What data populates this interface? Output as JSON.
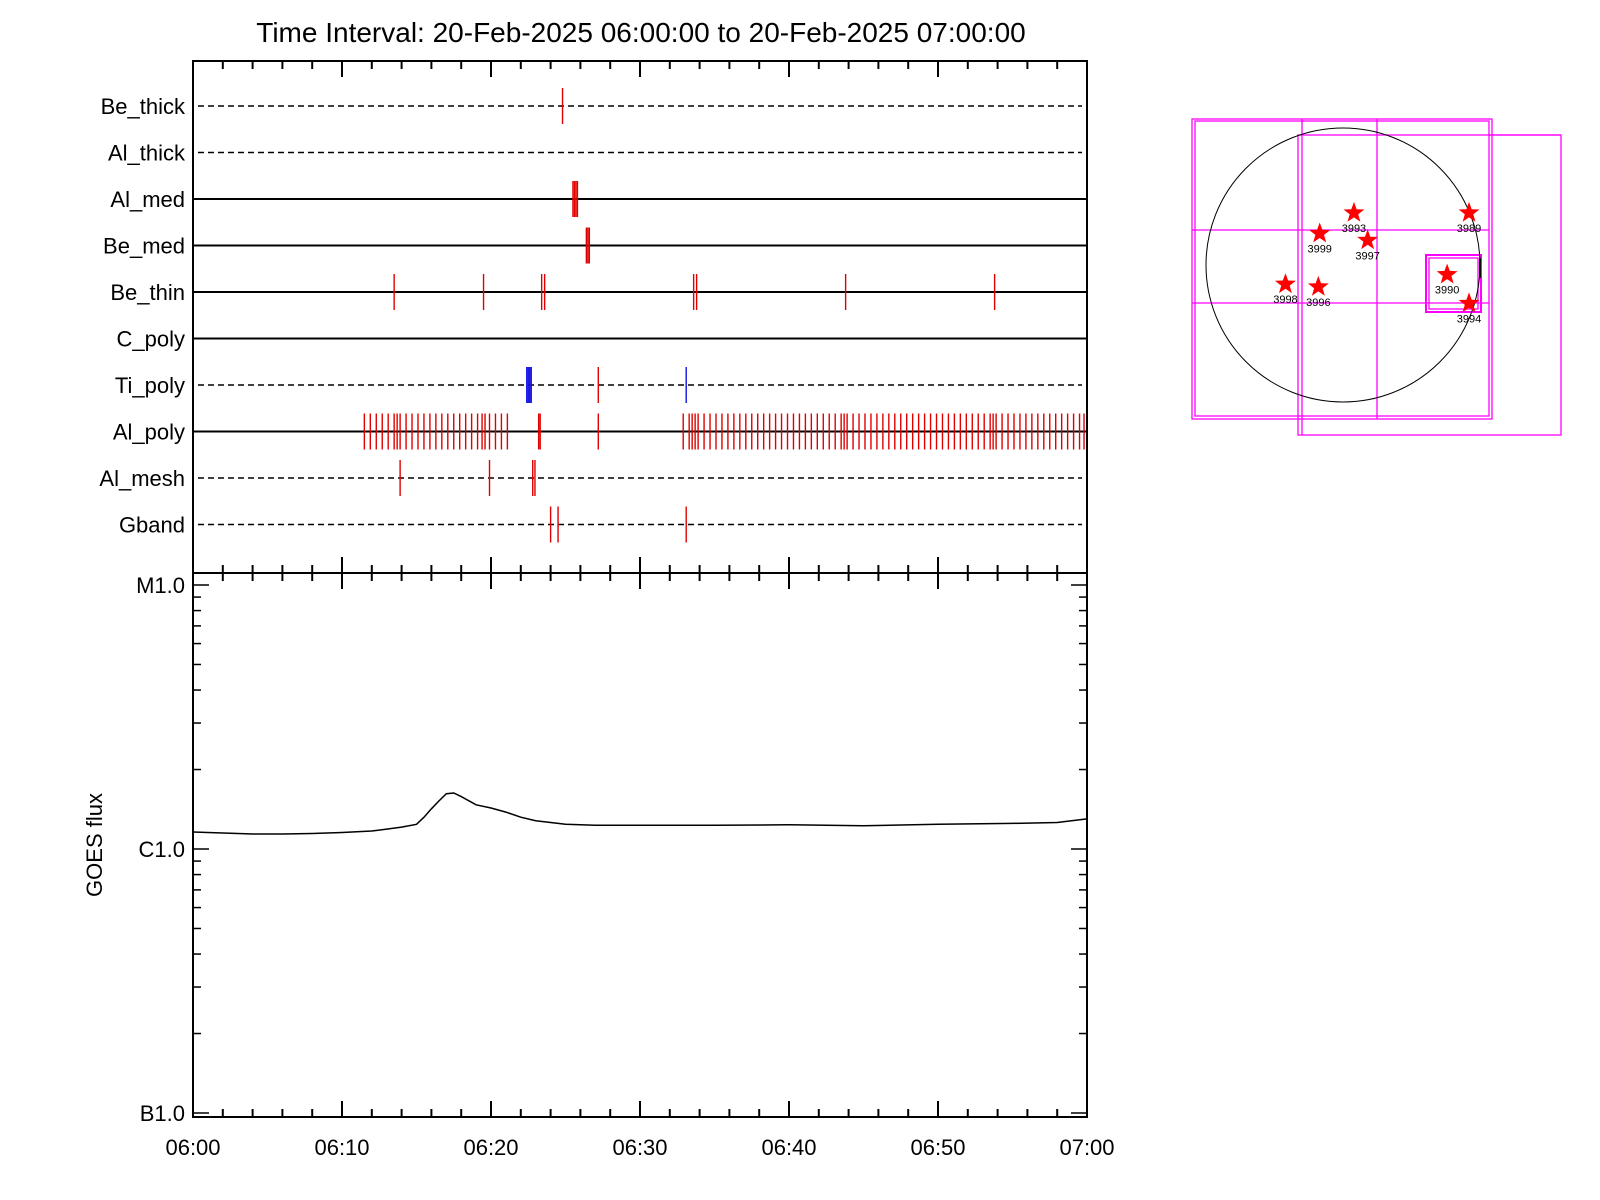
{
  "title": "Time Interval: 20-Feb-2025 06:00:00 to 20-Feb-2025 07:00:00",
  "colors": {
    "exposure": "#e00000",
    "blue": "#1010e0",
    "box": "#ff00ff",
    "star": "#ff0000",
    "axis": "#000000"
  },
  "chart_data": [
    {
      "type": "timeline",
      "x_unit": "minutes after 06:00",
      "xlim": [
        0,
        60
      ],
      "channels": [
        {
          "name": "Be_thick",
          "line": "dashed",
          "marks": [
            24.8
          ]
        },
        {
          "name": "Al_thick",
          "line": "dashed",
          "marks": []
        },
        {
          "name": "Al_med",
          "line": "solid",
          "marks": [
            25.5,
            25.6,
            25.7,
            25.8
          ]
        },
        {
          "name": "Be_med",
          "line": "solid",
          "marks": [
            26.4,
            26.5,
            26.6
          ]
        },
        {
          "name": "Be_thin",
          "line": "solid",
          "marks": [
            13.5,
            19.5,
            23.4,
            23.6,
            33.6,
            33.8,
            43.8,
            53.8
          ]
        },
        {
          "name": "C_poly",
          "line": "solid",
          "marks": []
        },
        {
          "name": "Ti_poly",
          "line": "dashed",
          "marks": [
            22.4,
            22.5,
            22.6,
            22.7,
            27.2,
            33.1
          ],
          "blue_marks": [
            22.4,
            22.5,
            22.6,
            22.7,
            33.1
          ]
        },
        {
          "name": "Al_poly",
          "line": "solid",
          "marks": [
            11.5,
            11.9,
            12.3,
            12.7,
            13.1,
            13.5,
            13.7,
            13.9,
            14.3,
            14.7,
            15.1,
            15.5,
            15.9,
            16.3,
            16.7,
            17.1,
            17.5,
            17.9,
            18.3,
            18.7,
            19.1,
            19.4,
            19.6,
            19.9,
            20.3,
            20.7,
            21.1,
            23.2,
            23.3,
            27.2,
            32.9,
            33.3,
            33.5,
            33.7,
            33.9,
            34.3,
            34.7,
            35.1,
            35.5,
            35.9,
            36.3,
            36.7,
            37.1,
            37.5,
            37.9,
            38.3,
            38.7,
            39.1,
            39.5,
            39.9,
            40.3,
            40.7,
            41.1,
            41.5,
            41.9,
            42.3,
            42.7,
            43.1,
            43.5,
            43.7,
            43.9,
            44.3,
            44.7,
            45.1,
            45.5,
            45.9,
            46.3,
            46.7,
            47.1,
            47.5,
            47.9,
            48.3,
            48.7,
            49.1,
            49.5,
            49.9,
            50.3,
            50.7,
            51.1,
            51.5,
            51.9,
            52.3,
            52.7,
            53.1,
            53.5,
            53.7,
            53.9,
            54.3,
            54.7,
            55.1,
            55.5,
            55.9,
            56.3,
            56.7,
            57.1,
            57.5,
            57.9,
            58.3,
            58.7,
            59.1,
            59.5,
            59.8
          ]
        },
        {
          "name": "Al_mesh",
          "line": "dashed",
          "marks": [
            13.9,
            19.9,
            22.8,
            22.95
          ]
        },
        {
          "name": "Gband",
          "line": "dashed",
          "marks": [
            24.0,
            24.5,
            33.1
          ]
        }
      ]
    },
    {
      "type": "line",
      "ylabel": "GOES flux",
      "y_scale": "log",
      "ylim": [
        1e-07,
        1e-05
      ],
      "y_tick_labels": [
        "M1.0",
        "C1.0",
        "B1.0"
      ],
      "x_tick_labels": [
        "06:00",
        "06:10",
        "06:20",
        "06:30",
        "06:40",
        "06:50",
        "07:00"
      ],
      "xlim": [
        0,
        60
      ],
      "series": [
        {
          "x": [
            0,
            2,
            4,
            6,
            8,
            10,
            12,
            13,
            14,
            15,
            15.5,
            16,
            16.5,
            17,
            17.5,
            18,
            19,
            20,
            21,
            22,
            23,
            24,
            25,
            27,
            30,
            35,
            40,
            45,
            50,
            55,
            58,
            60
          ],
          "y": [
            1.16e-06,
            1.15e-06,
            1.14e-06,
            1.14e-06,
            1.145e-06,
            1.155e-06,
            1.17e-06,
            1.19e-06,
            1.21e-06,
            1.24e-06,
            1.32e-06,
            1.42e-06,
            1.52e-06,
            1.62e-06,
            1.63e-06,
            1.58e-06,
            1.47e-06,
            1.43e-06,
            1.38e-06,
            1.32e-06,
            1.28e-06,
            1.26e-06,
            1.24e-06,
            1.23e-06,
            1.23e-06,
            1.23e-06,
            1.235e-06,
            1.225e-06,
            1.24e-06,
            1.25e-06,
            1.26e-06,
            1.3e-06
          ]
        }
      ]
    },
    {
      "type": "diagram",
      "regions": [
        {
          "label": "3993",
          "x": 0.08,
          "y": 0.38
        },
        {
          "label": "3989",
          "x": 0.92,
          "y": 0.38
        },
        {
          "label": "3999",
          "x": -0.17,
          "y": 0.23
        },
        {
          "label": "3997",
          "x": 0.18,
          "y": 0.18
        },
        {
          "label": "3990",
          "x": 0.76,
          "y": -0.07
        },
        {
          "label": "3998",
          "x": -0.42,
          "y": -0.14
        },
        {
          "label": "3996",
          "x": -0.18,
          "y": -0.16
        },
        {
          "label": "3994",
          "x": 0.92,
          "y": -0.28
        }
      ]
    }
  ]
}
